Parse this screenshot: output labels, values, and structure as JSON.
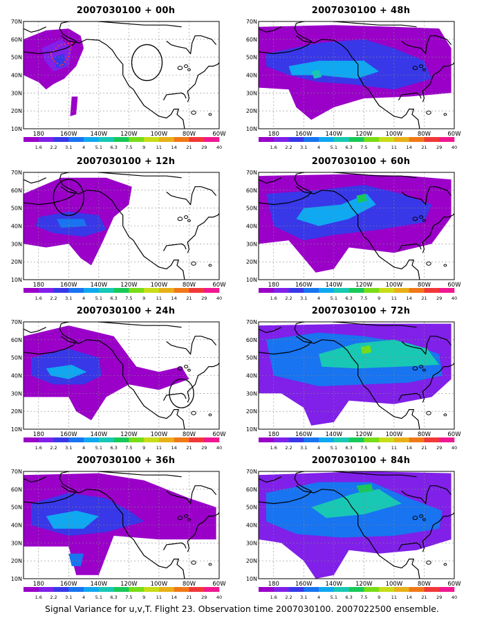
{
  "colorbar": {
    "labels": [
      "1.6",
      "2.2",
      "3.1",
      "4",
      "5.1",
      "6.3",
      "7.5",
      "9",
      "11",
      "14",
      "21",
      "29",
      "40"
    ],
    "colors": [
      "#9a00c8",
      "#8020e8",
      "#3838e8",
      "#1874f0",
      "#10a8f0",
      "#18c8b4",
      "#18c858",
      "#78dc18",
      "#c8dc18",
      "#e8b018",
      "#f07818",
      "#f03838",
      "#f01890"
    ]
  },
  "axes": {
    "x_ticks": [
      "180",
      "160W",
      "140W",
      "120W",
      "100W",
      "80W",
      "60W"
    ],
    "y_ticks": [
      "10N",
      "20N",
      "30N",
      "40N",
      "50N",
      "60N",
      "70N"
    ],
    "lon_range": [
      -190,
      -60
    ],
    "lat_range": [
      10,
      70
    ],
    "grid": true
  },
  "panels": [
    {
      "title": "2007030100 + 00h"
    },
    {
      "title": "2007030100 + 48h"
    },
    {
      "title": "2007030100 + 12h"
    },
    {
      "title": "2007030100 + 60h"
    },
    {
      "title": "2007030100 + 24h"
    },
    {
      "title": "2007030100 + 72h"
    },
    {
      "title": "2007030100 + 36h"
    },
    {
      "title": "2007030100 + 84h"
    }
  ],
  "footer": "Signal Variance for u,v,T. Flight 23. Observation time 2007030100. 2007022500 ensemble."
}
